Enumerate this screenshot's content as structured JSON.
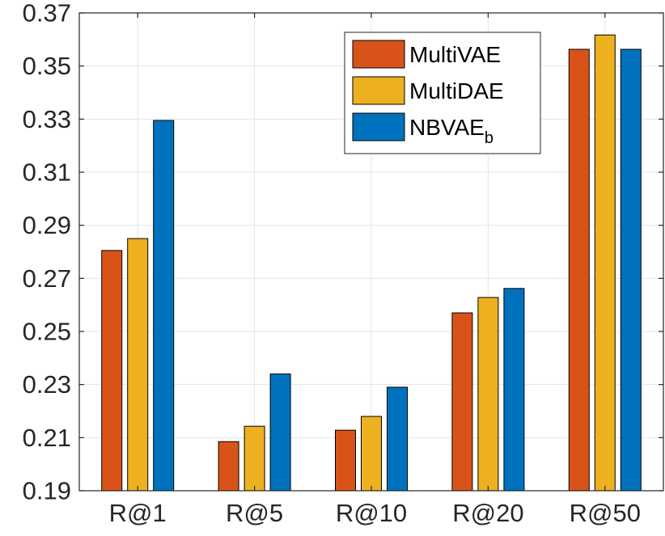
{
  "chart_data": {
    "type": "bar",
    "title": "",
    "xlabel": "",
    "ylabel": "",
    "categories": [
      "R@1",
      "R@5",
      "R@10",
      "R@20",
      "R@50"
    ],
    "series": [
      {
        "name": "MultiVAE",
        "legend_main": "MultiVAE",
        "legend_sub": "",
        "color": "#D95319",
        "values": [
          0.2805,
          0.2085,
          0.2128,
          0.257,
          0.3563
        ]
      },
      {
        "name": "MultiDAE",
        "legend_main": "MultiDAE",
        "legend_sub": "",
        "color": "#EDB120",
        "values": [
          0.285,
          0.2143,
          0.218,
          0.2628,
          0.3617
        ]
      },
      {
        "name": "NBVAE_b",
        "legend_main": "NBVAE",
        "legend_sub": "b",
        "color": "#0072BD",
        "values": [
          0.3295,
          0.234,
          0.229,
          0.2662,
          0.3563
        ]
      }
    ],
    "ylim": [
      0.19,
      0.37
    ],
    "yticks": [
      "0.19",
      "0.21",
      "0.23",
      "0.25",
      "0.27",
      "0.29",
      "0.31",
      "0.33",
      "0.35",
      "0.37"
    ],
    "grid": true,
    "legend_position": "top-right"
  }
}
